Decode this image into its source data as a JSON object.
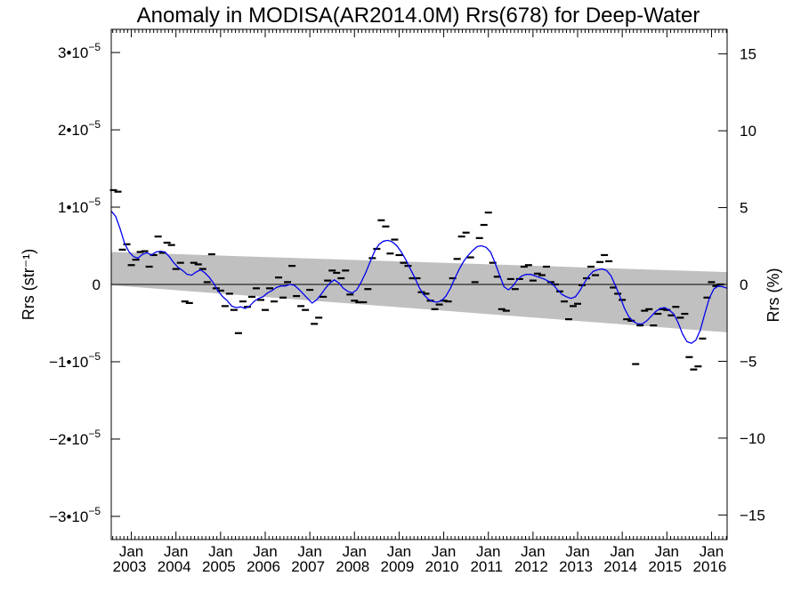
{
  "chart_data": {
    "type": "scatter",
    "title": "Anomaly in MODISA(AR2014.0M) Rrs(678) for Deep-Water",
    "ylabel": "Rrs (str⁻¹)",
    "y2label": "Rrs (%)",
    "xlim": [
      2002.55,
      2016.35
    ],
    "ylim": [
      -3.3e-05,
      3.3e-05
    ],
    "y2lim": [
      -16.6,
      16.6
    ],
    "yticks": [
      {
        "value": 3e-05,
        "mantissa": "3•10",
        "exp": "−5"
      },
      {
        "value": 2e-05,
        "mantissa": "2•10",
        "exp": "−5"
      },
      {
        "value": 1e-05,
        "mantissa": "1•10",
        "exp": "−5"
      },
      {
        "value": 0,
        "mantissa": "0",
        "exp": ""
      },
      {
        "value": -1e-05,
        "mantissa": "−1•10",
        "exp": "−5"
      },
      {
        "value": -2e-05,
        "mantissa": "−2•10",
        "exp": "−5"
      },
      {
        "value": -3e-05,
        "mantissa": "−3•10",
        "exp": "−5"
      }
    ],
    "y2ticks": [
      {
        "value": 15,
        "label": "15"
      },
      {
        "value": 10,
        "label": "10"
      },
      {
        "value": 5,
        "label": "5"
      },
      {
        "value": 0,
        "label": "0"
      },
      {
        "value": -5,
        "label": "−5"
      },
      {
        "value": -10,
        "label": "−10"
      },
      {
        "value": -15,
        "label": "−15"
      }
    ],
    "xticks": [
      {
        "value": 2003.0,
        "month": "Jan",
        "year": "2003"
      },
      {
        "value": 2004.0,
        "month": "Jan",
        "year": "2004"
      },
      {
        "value": 2005.0,
        "month": "Jan",
        "year": "2005"
      },
      {
        "value": 2006.0,
        "month": "Jan",
        "year": "2006"
      },
      {
        "value": 2007.0,
        "month": "Jan",
        "year": "2007"
      },
      {
        "value": 2008.0,
        "month": "Jan",
        "year": "2008"
      },
      {
        "value": 2009.0,
        "month": "Jan",
        "year": "2009"
      },
      {
        "value": 2010.0,
        "month": "Jan",
        "year": "2010"
      },
      {
        "value": 2011.0,
        "month": "Jan",
        "year": "2011"
      },
      {
        "value": 2012.0,
        "month": "Jan",
        "year": "2012"
      },
      {
        "value": 2013.0,
        "month": "Jan",
        "year": "2013"
      },
      {
        "value": 2014.0,
        "month": "Jan",
        "year": "2014"
      },
      {
        "value": 2015.0,
        "month": "Jan",
        "year": "2015"
      },
      {
        "value": 2016.0,
        "month": "Jan",
        "year": "2016"
      }
    ],
    "band": {
      "color": "#c0c0c0",
      "x": [
        2002.55,
        2016.35
      ],
      "upper": [
        4.2e-06,
        1.6e-06
      ],
      "lower": [
        -1e-07,
        -6.2e-06
      ]
    },
    "zero_line_color": "#000000",
    "smooth_color": "#0000ee",
    "marker_color": "#000000",
    "points": [
      [
        2002.6,
        1.22e-05
      ],
      [
        2002.7,
        1.2e-05
      ],
      [
        2002.8,
        4.5e-06
      ],
      [
        2002.9,
        5.2e-06
      ],
      [
        2003.0,
        2.5e-06
      ],
      [
        2003.1,
        3.2e-06
      ],
      [
        2003.2,
        4.2e-06
      ],
      [
        2003.3,
        4.3e-06
      ],
      [
        2003.4,
        2.3e-06
      ],
      [
        2003.5,
        3.8e-06
      ],
      [
        2003.6,
        6.2e-06
      ],
      [
        2003.7,
        4.1e-06
      ],
      [
        2003.8,
        5.4e-06
      ],
      [
        2003.9,
        5.1e-06
      ],
      [
        2004.0,
        2e-06
      ],
      [
        2004.1,
        2.8e-06
      ],
      [
        2004.2,
        -2.2e-06
      ],
      [
        2004.3,
        -2.4e-06
      ],
      [
        2004.4,
        2.8e-06
      ],
      [
        2004.5,
        2.6e-06
      ],
      [
        2004.6,
        2e-06
      ],
      [
        2004.7,
        3e-07
      ],
      [
        2004.8,
        3.9e-06
      ],
      [
        2004.9,
        -5e-07
      ],
      [
        2005.0,
        -8e-07
      ],
      [
        2005.1,
        -2.8e-06
      ],
      [
        2005.2,
        -1.2e-06
      ],
      [
        2005.3,
        -3.3e-06
      ],
      [
        2005.4,
        -6.3e-06
      ],
      [
        2005.5,
        -2.2e-06
      ],
      [
        2005.6,
        -2.9e-06
      ],
      [
        2005.7,
        -1.6e-06
      ],
      [
        2005.8,
        -5e-07
      ],
      [
        2005.9,
        -2e-06
      ],
      [
        2006.0,
        -3.3e-06
      ],
      [
        2006.1,
        -5e-07
      ],
      [
        2006.2,
        -2.2e-06
      ],
      [
        2006.3,
        9e-07
      ],
      [
        2006.4,
        -1.7e-06
      ],
      [
        2006.5,
        3e-07
      ],
      [
        2006.6,
        2.4e-06
      ],
      [
        2006.7,
        -1.5e-06
      ],
      [
        2006.8,
        -2.8e-06
      ],
      [
        2006.9,
        -3.3e-06
      ],
      [
        2007.0,
        -7e-07
      ],
      [
        2007.1,
        -5.1e-06
      ],
      [
        2007.2,
        -4.3e-06
      ],
      [
        2007.3,
        -1.6e-06
      ],
      [
        2007.4,
        5e-07
      ],
      [
        2007.5,
        1.8e-06
      ],
      [
        2007.6,
        1.5e-06
      ],
      [
        2007.7,
        8e-07
      ],
      [
        2007.8,
        1.8e-06
      ],
      [
        2007.9,
        -1.3e-06
      ],
      [
        2008.0,
        -2.1e-06
      ],
      [
        2008.1,
        -2.3e-06
      ],
      [
        2008.2,
        -2.3e-06
      ],
      [
        2008.3,
        -6e-07
      ],
      [
        2008.4,
        3.4e-06
      ],
      [
        2008.5,
        4.6e-06
      ],
      [
        2008.6,
        8.3e-06
      ],
      [
        2008.7,
        7.5e-06
      ],
      [
        2008.8,
        4e-06
      ],
      [
        2008.9,
        5.8e-06
      ],
      [
        2009.0,
        3.8e-06
      ],
      [
        2009.1,
        2.8e-06
      ],
      [
        2009.2,
        2.4e-06
      ],
      [
        2009.3,
        8e-07
      ],
      [
        2009.4,
        8e-07
      ],
      [
        2009.5,
        -1e-06
      ],
      [
        2009.6,
        -1.2e-06
      ],
      [
        2009.7,
        -2.1e-06
      ],
      [
        2009.8,
        -3.2e-06
      ],
      [
        2009.9,
        -2.6e-06
      ],
      [
        2010.0,
        -2.1e-06
      ],
      [
        2010.1,
        -2.2e-06
      ],
      [
        2010.2,
        8e-07
      ],
      [
        2010.3,
        3.3e-06
      ],
      [
        2010.4,
        6.2e-06
      ],
      [
        2010.5,
        6.7e-06
      ],
      [
        2010.6,
        3.5e-06
      ],
      [
        2010.7,
        3e-07
      ],
      [
        2010.8,
        6e-06
      ],
      [
        2010.9,
        7.7e-06
      ],
      [
        2011.0,
        9.3e-06
      ],
      [
        2011.1,
        2.8e-06
      ],
      [
        2011.2,
        1e-06
      ],
      [
        2011.3,
        -3.2e-06
      ],
      [
        2011.4,
        -3.4e-06
      ],
      [
        2011.5,
        7e-07
      ],
      [
        2011.6,
        -6e-07
      ],
      [
        2011.7,
        7e-07
      ],
      [
        2011.8,
        2.3e-06
      ],
      [
        2011.9,
        2.5e-06
      ],
      [
        2012.0,
        5e-07
      ],
      [
        2012.1,
        1.4e-06
      ],
      [
        2012.2,
        1.2e-06
      ],
      [
        2012.3,
        2.3e-06
      ],
      [
        2012.4,
        3e-07
      ],
      [
        2012.5,
        0.0
      ],
      [
        2012.6,
        -9e-07
      ],
      [
        2012.7,
        -2.2e-06
      ],
      [
        2012.8,
        -4.5e-06
      ],
      [
        2012.9,
        -2.8e-06
      ],
      [
        2013.0,
        -2.5e-06
      ],
      [
        2013.1,
        -1e-07
      ],
      [
        2013.2,
        8e-07
      ],
      [
        2013.3,
        2.3e-06
      ],
      [
        2013.4,
        1.2e-06
      ],
      [
        2013.5,
        2.9e-06
      ],
      [
        2013.6,
        3.8e-06
      ],
      [
        2013.7,
        3e-06
      ],
      [
        2013.8,
        -4e-07
      ],
      [
        2013.9,
        -1.2e-06
      ],
      [
        2014.0,
        -2e-06
      ],
      [
        2014.1,
        -4.5e-06
      ],
      [
        2014.2,
        -4.7e-06
      ],
      [
        2014.3,
        -1.03e-05
      ],
      [
        2014.4,
        -5.3e-06
      ],
      [
        2014.5,
        -3.4e-06
      ],
      [
        2014.6,
        -3.2e-06
      ],
      [
        2014.7,
        -5.3e-06
      ],
      [
        2014.8,
        -3.8e-06
      ],
      [
        2014.9,
        -3.2e-06
      ],
      [
        2015.0,
        -3.3e-06
      ],
      [
        2015.1,
        -4e-06
      ],
      [
        2015.2,
        -2.9e-06
      ],
      [
        2015.3,
        -4.3e-06
      ],
      [
        2015.4,
        -3.8e-06
      ],
      [
        2015.5,
        -9.4e-06
      ],
      [
        2015.6,
        -1.1e-05
      ],
      [
        2015.7,
        -1.06e-05
      ],
      [
        2015.8,
        -7e-06
      ],
      [
        2015.9,
        -1.7e-06
      ],
      [
        2016.0,
        3e-07
      ],
      [
        2016.1,
        -2e-07
      ],
      [
        2016.2,
        0.0
      ]
    ],
    "smooth": [
      [
        2002.55,
        9.5e-06
      ],
      [
        2002.65,
        8.8e-06
      ],
      [
        2002.75,
        7.2e-06
      ],
      [
        2002.85,
        5.3e-06
      ],
      [
        2002.95,
        4.2e-06
      ],
      [
        2003.05,
        3.6e-06
      ],
      [
        2003.15,
        3.4e-06
      ],
      [
        2003.25,
        3.9e-06
      ],
      [
        2003.35,
        4.1e-06
      ],
      [
        2003.45,
        3.8e-06
      ],
      [
        2003.55,
        4.2e-06
      ],
      [
        2003.65,
        4.3e-06
      ],
      [
        2003.75,
        4.2e-06
      ],
      [
        2003.85,
        3.6e-06
      ],
      [
        2003.95,
        2.8e-06
      ],
      [
        2004.05,
        2.2e-06
      ],
      [
        2004.15,
        1.8e-06
      ],
      [
        2004.25,
        1.3e-06
      ],
      [
        2004.35,
        1.2e-06
      ],
      [
        2004.45,
        1.6e-06
      ],
      [
        2004.55,
        1.9e-06
      ],
      [
        2004.65,
        1.5e-06
      ],
      [
        2004.75,
        9e-07
      ],
      [
        2004.85,
        1e-07
      ],
      [
        2004.95,
        -9e-07
      ],
      [
        2005.05,
        -1.6e-06
      ],
      [
        2005.15,
        -2.1e-06
      ],
      [
        2005.25,
        -2.8e-06
      ],
      [
        2005.35,
        -3e-06
      ],
      [
        2005.45,
        -2.9e-06
      ],
      [
        2005.55,
        -3.1e-06
      ],
      [
        2005.65,
        -2.8e-06
      ],
      [
        2005.75,
        -2.2e-06
      ],
      [
        2005.85,
        -1.8e-06
      ],
      [
        2005.95,
        -1.6e-06
      ],
      [
        2006.05,
        -1.1e-06
      ],
      [
        2006.15,
        -8e-07
      ],
      [
        2006.25,
        -4e-07
      ],
      [
        2006.35,
        -2e-07
      ],
      [
        2006.45,
        -2e-07
      ],
      [
        2006.55,
        0.0
      ],
      [
        2006.65,
        -1e-07
      ],
      [
        2006.75,
        -6e-07
      ],
      [
        2006.85,
        -1.2e-06
      ],
      [
        2006.95,
        -1.8e-06
      ],
      [
        2007.05,
        -2.4e-06
      ],
      [
        2007.15,
        -2e-06
      ],
      [
        2007.25,
        -1.3e-06
      ],
      [
        2007.35,
        -5e-07
      ],
      [
        2007.45,
        2e-07
      ],
      [
        2007.55,
        6e-07
      ],
      [
        2007.65,
        2e-07
      ],
      [
        2007.75,
        -5e-07
      ],
      [
        2007.85,
        -9e-07
      ],
      [
        2007.95,
        -1.1e-06
      ],
      [
        2008.05,
        -7e-07
      ],
      [
        2008.15,
        3e-07
      ],
      [
        2008.25,
        1.5e-06
      ],
      [
        2008.35,
        2.9e-06
      ],
      [
        2008.45,
        4.3e-06
      ],
      [
        2008.55,
        5.2e-06
      ],
      [
        2008.65,
        5.6e-06
      ],
      [
        2008.75,
        5.7e-06
      ],
      [
        2008.85,
        5.5e-06
      ],
      [
        2008.95,
        5e-06
      ],
      [
        2009.05,
        4.2e-06
      ],
      [
        2009.15,
        3.2e-06
      ],
      [
        2009.25,
        2e-06
      ],
      [
        2009.35,
        9e-07
      ],
      [
        2009.45,
        -4e-07
      ],
      [
        2009.55,
        -1.3e-06
      ],
      [
        2009.65,
        -1.9e-06
      ],
      [
        2009.75,
        -2.2e-06
      ],
      [
        2009.85,
        -2.3e-06
      ],
      [
        2009.95,
        -2.1e-06
      ],
      [
        2010.05,
        -1.5e-06
      ],
      [
        2010.15,
        -5e-07
      ],
      [
        2010.25,
        8e-07
      ],
      [
        2010.35,
        2e-06
      ],
      [
        2010.45,
        3e-06
      ],
      [
        2010.55,
        3.8e-06
      ],
      [
        2010.65,
        4.4e-06
      ],
      [
        2010.75,
        4.9e-06
      ],
      [
        2010.85,
        5e-06
      ],
      [
        2010.95,
        4.8e-06
      ],
      [
        2011.05,
        4.2e-06
      ],
      [
        2011.15,
        2.8e-06
      ],
      [
        2011.25,
        1.2e-06
      ],
      [
        2011.35,
        -3e-07
      ],
      [
        2011.45,
        -7e-07
      ],
      [
        2011.55,
        -2e-07
      ],
      [
        2011.65,
        6e-07
      ],
      [
        2011.75,
        1.1e-06
      ],
      [
        2011.85,
        1.3e-06
      ],
      [
        2011.95,
        1.3e-06
      ],
      [
        2012.05,
        1.1e-06
      ],
      [
        2012.15,
        9e-07
      ],
      [
        2012.25,
        7e-07
      ],
      [
        2012.35,
        4e-07
      ],
      [
        2012.45,
        0.0
      ],
      [
        2012.55,
        -7e-07
      ],
      [
        2012.65,
        -1.3e-06
      ],
      [
        2012.75,
        -1.6e-06
      ],
      [
        2012.85,
        -1.8e-06
      ],
      [
        2012.95,
        -1.6e-06
      ],
      [
        2013.05,
        -8e-07
      ],
      [
        2013.15,
        2e-07
      ],
      [
        2013.25,
        1.1e-06
      ],
      [
        2013.35,
        1.7e-06
      ],
      [
        2013.45,
        1.9e-06
      ],
      [
        2013.55,
        2e-06
      ],
      [
        2013.65,
        1.8e-06
      ],
      [
        2013.75,
        1.1e-06
      ],
      [
        2013.85,
        -2e-07
      ],
      [
        2013.95,
        -1.6e-06
      ],
      [
        2014.05,
        -3.1e-06
      ],
      [
        2014.15,
        -4.2e-06
      ],
      [
        2014.25,
        -4.8e-06
      ],
      [
        2014.35,
        -5.1e-06
      ],
      [
        2014.45,
        -5.1e-06
      ],
      [
        2014.55,
        -4.7e-06
      ],
      [
        2014.65,
        -4.1e-06
      ],
      [
        2014.75,
        -3.5e-06
      ],
      [
        2014.85,
        -3.1e-06
      ],
      [
        2014.95,
        -3e-06
      ],
      [
        2015.05,
        -3.3e-06
      ],
      [
        2015.15,
        -3.8e-06
      ],
      [
        2015.25,
        -4.9e-06
      ],
      [
        2015.35,
        -6.4e-06
      ],
      [
        2015.45,
        -7.4e-06
      ],
      [
        2015.55,
        -7.6e-06
      ],
      [
        2015.65,
        -7.2e-06
      ],
      [
        2015.75,
        -5.9e-06
      ],
      [
        2015.85,
        -3.8e-06
      ],
      [
        2015.95,
        -1.8e-06
      ],
      [
        2016.05,
        -6e-07
      ],
      [
        2016.15,
        -2e-07
      ],
      [
        2016.25,
        -3e-07
      ],
      [
        2016.35,
        -5e-07
      ]
    ]
  }
}
